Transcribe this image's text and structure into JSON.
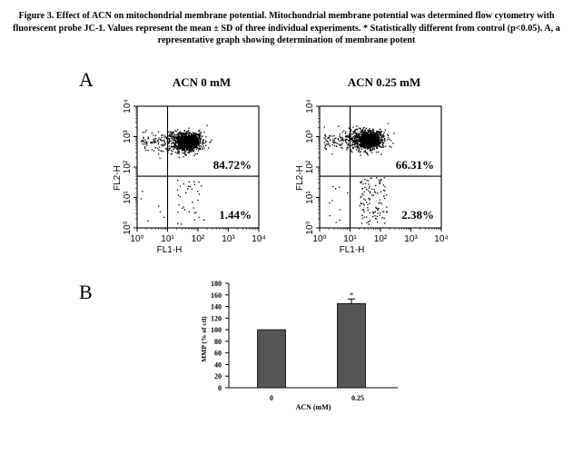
{
  "caption": "Figure 3. Effect of ACN on mitochondrial membrane potential. Mitochondrial membrane potential was determined flow cytometry with fluorescent probe JC-1. Values represent the mean ± SD of three individual experiments. * Statistically different from control (p<0.05). A, a representative graph showing determination of membrane potent",
  "panel_a_label": "A",
  "panel_b_label": "B",
  "chart_data": [
    {
      "type": "scatter",
      "title": "ACN 0 mM",
      "xlabel": "FL1-H",
      "ylabel": "FL2-H",
      "x_scale": "log",
      "y_scale": "log",
      "xlim": [
        1,
        10000
      ],
      "ylim": [
        1,
        10000
      ],
      "x_tick_labels": [
        "10⁰",
        "10¹",
        "10²",
        "10³",
        "10⁴"
      ],
      "y_tick_labels": [
        "10⁰",
        "10¹",
        "10²",
        "10³",
        "10⁴"
      ],
      "quadrant_gate": {
        "x": 10,
        "y": 50
      },
      "quadrant_labels": {
        "upper_right": "84.72%",
        "lower_right": "1.44%"
      },
      "dense_cluster": {
        "x": 50,
        "y": 700
      }
    },
    {
      "type": "scatter",
      "title": "ACN 0.25 mM",
      "xlabel": "FL1-H",
      "ylabel": "FL2-H",
      "x_scale": "log",
      "y_scale": "log",
      "xlim": [
        1,
        10000
      ],
      "ylim": [
        1,
        10000
      ],
      "x_tick_labels": [
        "10⁰",
        "10¹",
        "10²",
        "10³",
        "10⁴"
      ],
      "y_tick_labels": [
        "10⁰",
        "10¹",
        "10²",
        "10³",
        "10⁴"
      ],
      "quadrant_gate": {
        "x": 10,
        "y": 50
      },
      "quadrant_labels": {
        "upper_right": "66.31%",
        "lower_right": "2.38%"
      },
      "dense_cluster": {
        "x": 45,
        "y": 800
      }
    },
    {
      "type": "bar",
      "categories": [
        "0",
        "0.25"
      ],
      "values": [
        100,
        145
      ],
      "errors": [
        0,
        8
      ],
      "significance": [
        "",
        "*"
      ],
      "xlabel": "ACN (mM)",
      "ylabel": "MMP (% of ctl)",
      "ylim": [
        0,
        180
      ],
      "yticks": [
        0,
        20,
        40,
        60,
        80,
        100,
        120,
        140,
        160,
        180
      ],
      "bar_color": "#555555"
    }
  ]
}
